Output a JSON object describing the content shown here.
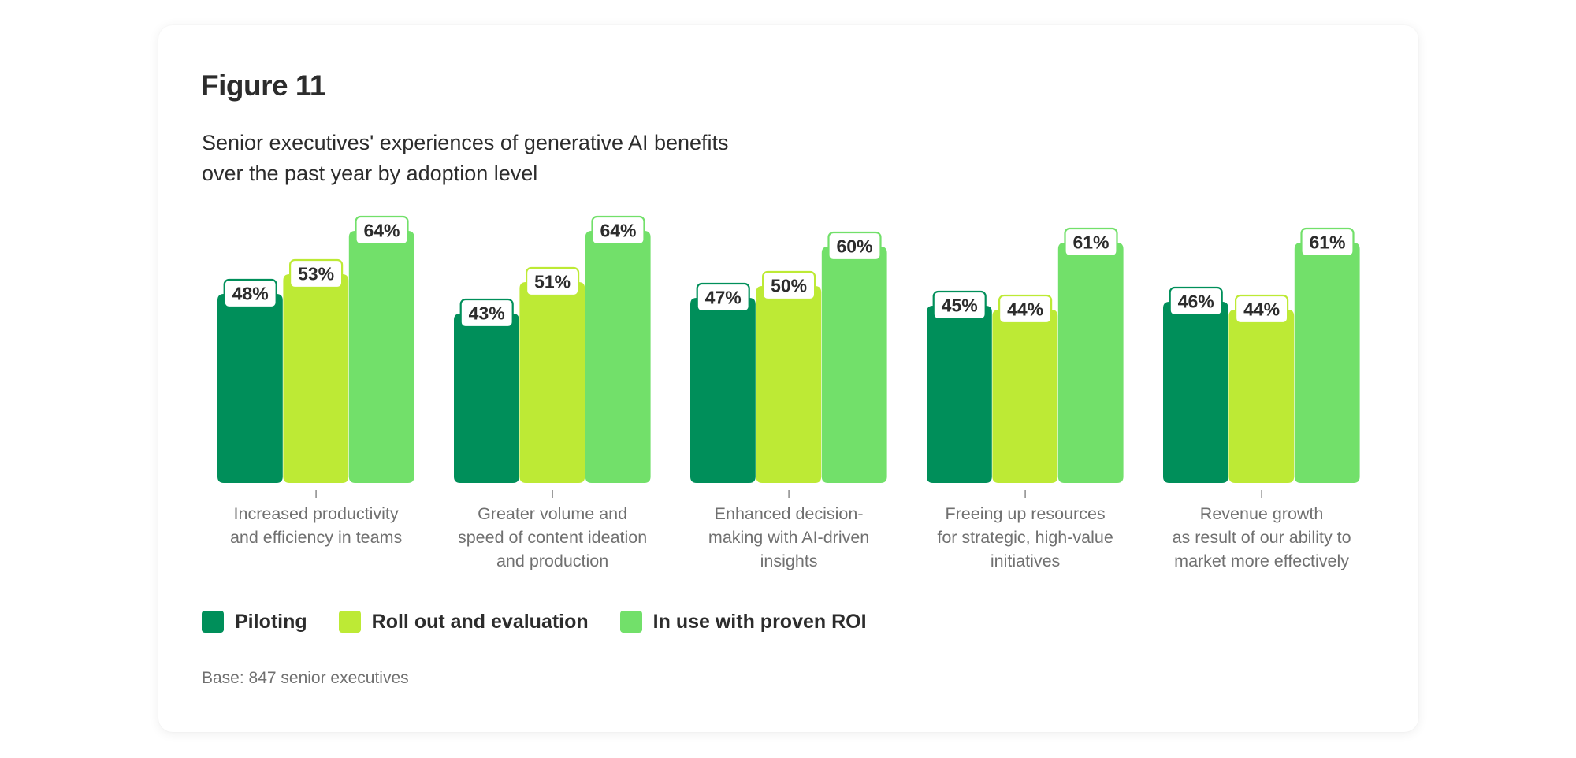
{
  "figure": {
    "title": "Figure 11",
    "subtitle_lines": [
      "Senior executives' experiences of generative AI benefits",
      "over the past year by adoption level"
    ],
    "base_note": "Base: 847 senior executives"
  },
  "legend": [
    {
      "label": "Piloting",
      "color": "#008F5A"
    },
    {
      "label": "Roll out and evaluation",
      "color": "#BDEA35"
    },
    {
      "label": "In use with proven ROI",
      "color": "#72E06A"
    }
  ],
  "chart_data": {
    "type": "bar",
    "title": "Senior executives' experiences of generative AI benefits over the past year by adoption level",
    "xlabel": "",
    "ylabel": "",
    "ylim": [
      0,
      100
    ],
    "grid": false,
    "legend_position": "bottom-left",
    "value_suffix": "%",
    "categories": [
      [
        "Increased productivity",
        "and efficiency in teams"
      ],
      [
        "Greater volume and",
        "speed of content ideation",
        "and production"
      ],
      [
        "Enhanced decision-",
        "making with AI-driven",
        "insights"
      ],
      [
        "Freeing up resources",
        "for strategic, high-value",
        "initiatives"
      ],
      [
        "Revenue growth",
        "as result of our ability to",
        "market more effectively"
      ]
    ],
    "series": [
      {
        "name": "Piloting",
        "color": "#008F5A",
        "values": [
          48,
          43,
          47,
          45,
          46
        ]
      },
      {
        "name": "Roll out and evaluation",
        "color": "#BDEA35",
        "values": [
          53,
          51,
          50,
          44,
          44
        ]
      },
      {
        "name": "In use with proven ROI",
        "color": "#72E06A",
        "values": [
          64,
          64,
          60,
          61,
          61
        ]
      }
    ]
  }
}
